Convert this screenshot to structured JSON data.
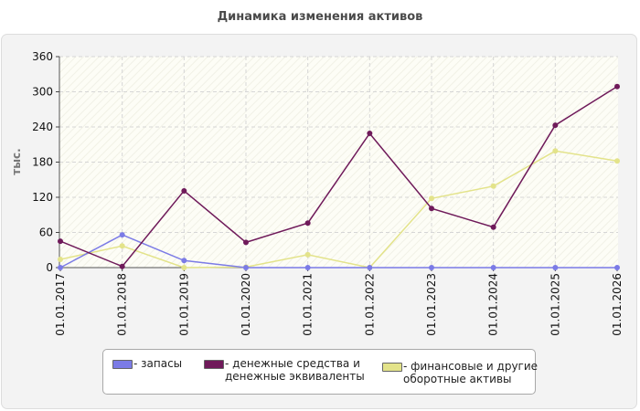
{
  "chart_data": {
    "type": "line",
    "title": "Динамика изменения активов",
    "ylabel": "тыс.",
    "xlabel": "",
    "categories": [
      "01.01.2017",
      "01.01.2018",
      "01.01.2019",
      "01.01.2020",
      "01.01.2021",
      "01.01.2022",
      "01.01.2023",
      "01.01.2024",
      "01.01.2025",
      "01.01.2026"
    ],
    "ylim": [
      0,
      360
    ],
    "yticks": [
      "0",
      "60",
      "120",
      "180",
      "240",
      "300",
      "360"
    ],
    "grid": true,
    "legend_position": "bottom",
    "series": [
      {
        "name": "- запасы",
        "color": "#7b7be6",
        "values": [
          0,
          56,
          12,
          0,
          0,
          0,
          0,
          0,
          0,
          0
        ]
      },
      {
        "name": "- денежные средства и денежные эквиваленты",
        "color": "#6f1a5a",
        "values": [
          45,
          2,
          131,
          43,
          76,
          229,
          101,
          69,
          243,
          309
        ]
      },
      {
        "name": "- финансовые и другие оборотные активы",
        "color": "#e3e38a",
        "values": [
          14,
          37,
          0,
          1,
          22,
          0,
          118,
          139,
          199,
          182
        ]
      }
    ],
    "legend_lines": [
      [
        "- запасы"
      ],
      [
        "- денежные средства и",
        "денежные эквиваленты"
      ],
      [
        "- финансовые и другие",
        "оборотные активы"
      ]
    ]
  }
}
